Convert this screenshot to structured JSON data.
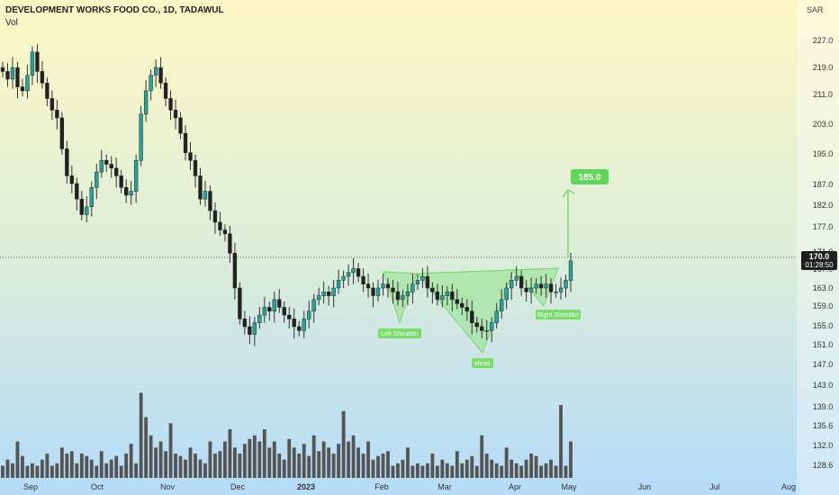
{
  "header": {
    "title": "DEVELOPMENT WORKS FOOD CO., 1D, TADAWUL",
    "indicator": "Vol"
  },
  "price_axis": {
    "currency": "SAR",
    "ticks": [
      "227.0",
      "219.0",
      "211.0",
      "203.0",
      "195.0",
      "187.0",
      "182.0",
      "177.0",
      "171.0",
      "167.0",
      "163.0",
      "159.0",
      "155.0",
      "151.0",
      "147.0",
      "143.0",
      "139.0",
      "135.6",
      "132.0",
      "128.6"
    ],
    "last_price": "170.0",
    "countdown": "01:28:50"
  },
  "time_axis": {
    "ticks": [
      "Sep",
      "Oct",
      "Nov",
      "Dec",
      "2023",
      "Feb",
      "Mar",
      "Apr",
      "May",
      "Jun",
      "Jul",
      "Aug"
    ]
  },
  "annotations": {
    "left_shoulder": "Left Shoulder",
    "head": "Head",
    "right_shoulder": "Right Shoulder",
    "target": "185.0"
  },
  "colors": {
    "up": "#26a69a",
    "down": "#222222",
    "pattern": "#86e27a",
    "volume": "#555555",
    "bg_top": "#fdf6c4",
    "bg_bottom": "#b8dcf8"
  },
  "chart_data": {
    "type": "candlestick",
    "close": [
      219,
      217,
      220,
      215,
      214,
      218,
      224,
      219,
      216,
      212,
      209,
      207,
      199,
      192,
      190,
      186,
      182,
      184,
      189,
      193,
      196,
      195,
      194,
      192,
      189,
      187,
      188,
      196,
      208,
      214,
      218,
      220,
      216,
      212,
      209,
      207,
      203,
      198,
      196,
      192,
      186,
      188,
      183,
      180,
      178,
      177,
      172,
      163,
      155,
      153,
      151,
      154,
      156,
      158,
      157,
      160,
      158,
      156,
      155,
      153,
      152,
      155,
      157,
      160,
      161,
      162,
      161,
      163,
      165,
      166,
      167,
      168,
      166,
      164,
      163,
      161,
      163,
      164,
      163,
      162,
      160,
      161,
      162,
      164,
      165,
      166,
      163,
      162,
      160,
      161,
      162,
      160,
      159,
      158,
      157,
      154,
      153,
      152,
      152,
      154,
      157,
      160,
      163,
      165,
      166,
      163,
      162,
      163,
      164,
      163,
      164,
      162,
      162,
      163,
      165,
      170
    ],
    "volume_scale": "relative",
    "volume": [
      0.1,
      0.15,
      0.12,
      0.3,
      0.18,
      0.1,
      0.12,
      0.1,
      0.15,
      0.2,
      0.1,
      0.12,
      0.25,
      0.2,
      0.22,
      0.12,
      0.2,
      0.18,
      0.15,
      0.1,
      0.22,
      0.12,
      0.15,
      0.18,
      0.1,
      0.2,
      0.28,
      0.12,
      0.7,
      0.5,
      0.35,
      0.25,
      0.3,
      0.22,
      0.45,
      0.2,
      0.18,
      0.15,
      0.25,
      0.2,
      0.15,
      0.12,
      0.3,
      0.2,
      0.22,
      0.3,
      0.4,
      0.25,
      0.2,
      0.28,
      0.32,
      0.35,
      0.3,
      0.4,
      0.25,
      0.3,
      0.2,
      0.15,
      0.32,
      0.25,
      0.2,
      0.28,
      0.18,
      0.35,
      0.22,
      0.3,
      0.25,
      0.2,
      0.28,
      0.55,
      0.3,
      0.35,
      0.25,
      0.2,
      0.3,
      0.15,
      0.18,
      0.2,
      0.22,
      0.1,
      0.12,
      0.15,
      0.25,
      0.1,
      0.12,
      0.1,
      0.12,
      0.2,
      0.1,
      0.15,
      0.12,
      0.1,
      0.22,
      0.12,
      0.15,
      0.18,
      0.1,
      0.35,
      0.2,
      0.15,
      0.12,
      0.1,
      0.25,
      0.15,
      0.12,
      0.1,
      0.15,
      0.2,
      0.18,
      0.1,
      0.12,
      0.15,
      0.1,
      0.6,
      0.1,
      0.3
    ]
  }
}
